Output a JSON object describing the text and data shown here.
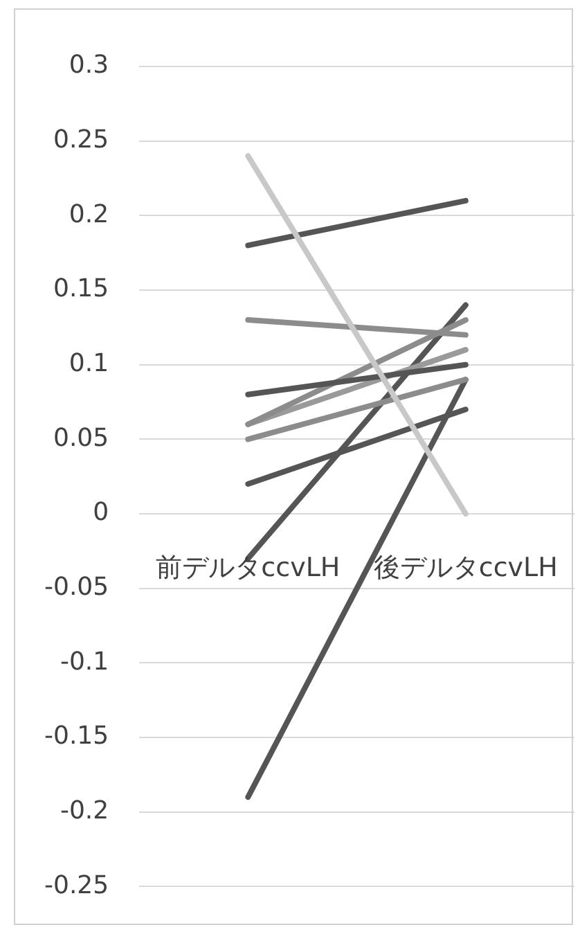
{
  "chart_data": {
    "type": "line",
    "categories": [
      "前デルタccvLH",
      "後デルタccvLH"
    ],
    "series": [
      {
        "color": "#c8c8c8",
        "values": [
          0.24,
          0.0
        ]
      },
      {
        "color": "#555555",
        "values": [
          0.18,
          0.21
        ]
      },
      {
        "color": "#8c8c8c",
        "values": [
          0.13,
          0.12
        ]
      },
      {
        "color": "#555555",
        "values": [
          0.08,
          0.1
        ]
      },
      {
        "color": "#8c8c8c",
        "values": [
          0.06,
          0.13
        ]
      },
      {
        "color": "#9a9a9a",
        "values": [
          0.06,
          0.11
        ]
      },
      {
        "color": "#8c8c8c",
        "values": [
          0.05,
          0.09
        ]
      },
      {
        "color": "#555555",
        "values": [
          0.02,
          0.07
        ]
      },
      {
        "color": "#555555",
        "values": [
          -0.03,
          0.14
        ]
      },
      {
        "color": "#555555",
        "values": [
          -0.19,
          0.09
        ]
      }
    ],
    "ylim": [
      -0.25,
      0.3
    ],
    "yticks": [
      -0.25,
      -0.2,
      -0.15,
      -0.1,
      -0.05,
      0,
      0.05,
      0.1,
      0.15,
      0.2,
      0.25,
      0.3
    ],
    "grid": "y",
    "legend": false,
    "marker": "none",
    "line_style": "solid"
  }
}
